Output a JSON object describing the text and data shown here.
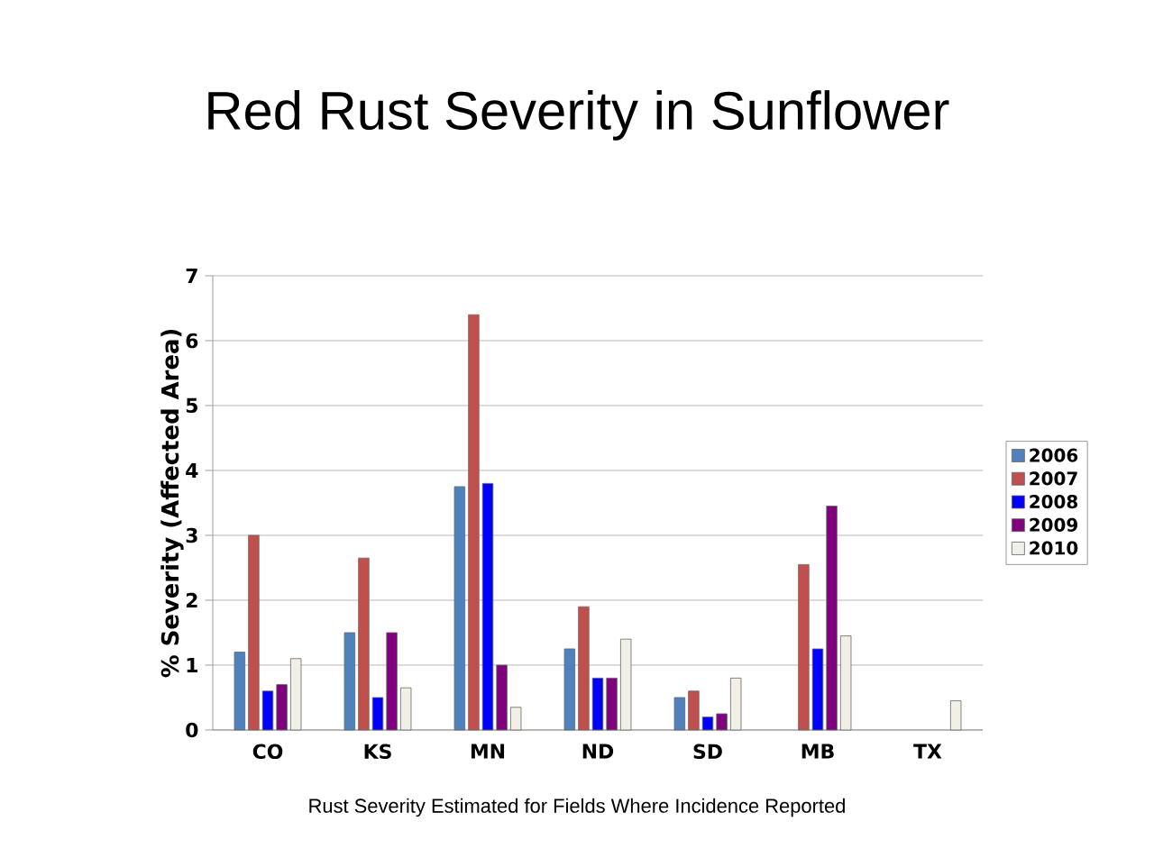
{
  "chart_data": {
    "type": "bar",
    "title": "Red Rust Severity in Sunflower",
    "ylabel": "% Severity (Affected Area)",
    "annotations": [
      "Rust Severity Estimated for Fields Where Incidence Reported"
    ],
    "categories": [
      "CO",
      "KS",
      "MN",
      "ND",
      "SD",
      "MB",
      "TX"
    ],
    "series": [
      {
        "name": "2006",
        "color": "#4f81bd",
        "values": [
          1.2,
          1.5,
          3.75,
          1.25,
          0.5,
          null,
          null
        ]
      },
      {
        "name": "2007",
        "color": "#c0504d",
        "values": [
          3.0,
          2.65,
          6.4,
          1.9,
          0.6,
          2.55,
          null
        ]
      },
      {
        "name": "2008",
        "color": "#0000ff",
        "values": [
          0.6,
          0.5,
          3.8,
          0.8,
          0.2,
          1.25,
          null
        ]
      },
      {
        "name": "2009",
        "color": "#800080",
        "values": [
          0.7,
          1.5,
          1.0,
          0.8,
          0.25,
          3.45,
          null
        ]
      },
      {
        "name": "2010",
        "color": "#f2f0e6",
        "values": [
          1.1,
          0.65,
          0.35,
          1.4,
          0.8,
          1.45,
          0.45
        ]
      }
    ],
    "ylim": [
      0,
      7
    ],
    "yticks": [
      0,
      1,
      2,
      3,
      4,
      5,
      6,
      7
    ],
    "grid": "y",
    "legend": "right"
  }
}
